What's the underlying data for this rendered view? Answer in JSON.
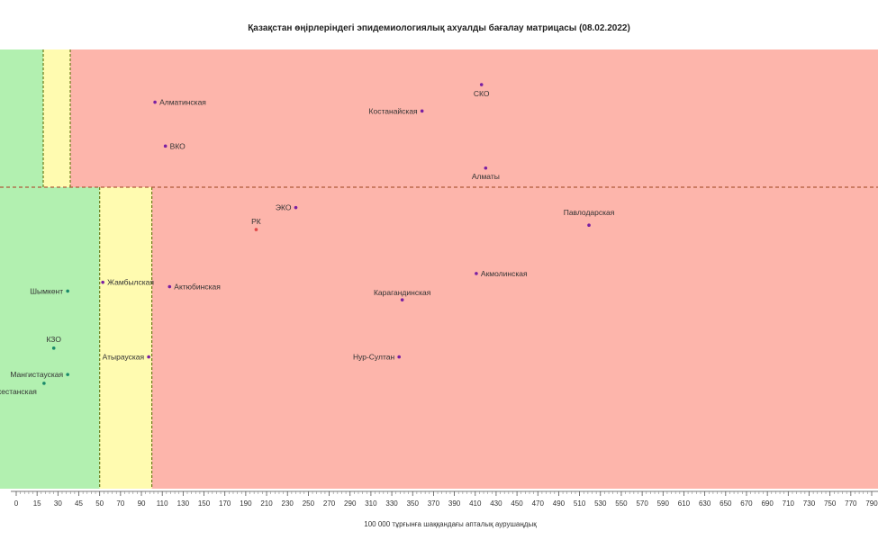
{
  "chart_data": {
    "type": "scatter",
    "title": "Қазақстан өңірлеріндегі эпидемиологиялық ахуалды бағалау матрицасы  (08.02.2022)",
    "xlabel": "100 000 тұрғынға шаққандағы апталық аурушаңдық",
    "ylabel": "",
    "xlim": [
      0,
      790
    ],
    "x_ticks": [
      0,
      15,
      30,
      45,
      50,
      70,
      90,
      110,
      130,
      150,
      170,
      190,
      210,
      230,
      250,
      270,
      290,
      310,
      330,
      350,
      370,
      390,
      410,
      430,
      450,
      470,
      490,
      510,
      530,
      550,
      570,
      590,
      610,
      630,
      650,
      670,
      690,
      710,
      730,
      750,
      770,
      790
    ],
    "zone_thresholds_x": [
      50,
      100
    ],
    "zones": [
      {
        "name": "green",
        "color": "#b2f0b0"
      },
      {
        "name": "yellow",
        "color": "#fffbb0"
      },
      {
        "name": "red",
        "color": "#fdb5ab"
      }
    ],
    "points": [
      {
        "label": "СКО",
        "x": 416,
        "y": 0.92,
        "color": "#7a1fa2"
      },
      {
        "label": "Алматинская",
        "x": 103,
        "y": 0.88,
        "color": "#7a1fa2"
      },
      {
        "label": "Костанайская",
        "x": 359,
        "y": 0.86,
        "color": "#7a1fa2"
      },
      {
        "label": "ВКО",
        "x": 113,
        "y": 0.78,
        "color": "#7a1fa2"
      },
      {
        "label": "Алматы",
        "x": 420,
        "y": 0.73,
        "color": "#7a1fa2"
      },
      {
        "label": "ЭКО",
        "x": 238,
        "y": 0.64,
        "color": "#7a1fa2"
      },
      {
        "label": "Павлодарская",
        "x": 519,
        "y": 0.6,
        "color": "#7a1fa2"
      },
      {
        "label": "РК",
        "x": 200,
        "y": 0.59,
        "color": "#e04848"
      },
      {
        "label": "Акмолинская",
        "x": 411,
        "y": 0.49,
        "color": "#7a1fa2"
      },
      {
        "label": "Жамбылская",
        "x": 53,
        "y": 0.47,
        "color": "#7a1fa2"
      },
      {
        "label": "Актюбинская",
        "x": 117,
        "y": 0.46,
        "color": "#7a1fa2"
      },
      {
        "label": "Шымкент",
        "x": 37,
        "y": 0.45,
        "color": "#1a8a6a"
      },
      {
        "label": "Карагандинская",
        "x": 340,
        "y": 0.43,
        "color": "#7a1fa2"
      },
      {
        "label": "КЗО",
        "x": 27,
        "y": 0.32,
        "color": "#1a8a6a"
      },
      {
        "label": "Атырауская",
        "x": 97,
        "y": 0.3,
        "color": "#7a1fa2"
      },
      {
        "label": "Нур-Султан",
        "x": 337,
        "y": 0.3,
        "color": "#7a1fa2"
      },
      {
        "label": "Мангистауская",
        "x": 37,
        "y": 0.26,
        "color": "#1a8a6a"
      },
      {
        "label": "Туркестанская",
        "x": 20,
        "y": 0.24,
        "color": "#1a8a6a"
      }
    ]
  }
}
